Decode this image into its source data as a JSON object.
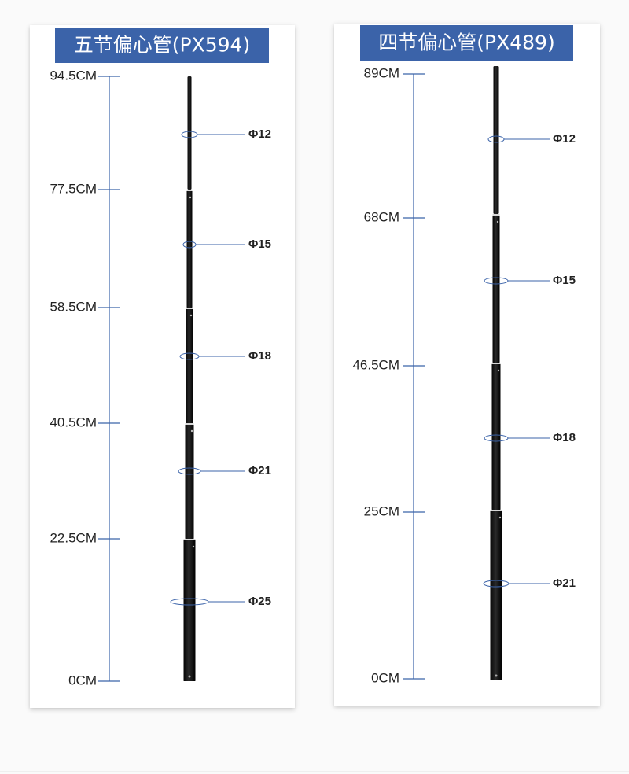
{
  "panels": [
    {
      "title": "五节偏心管(PX594)",
      "scale": [
        "94.5CM",
        "77.5CM",
        "58.5CM",
        "40.5CM",
        "22.5CM",
        "0CM"
      ],
      "diameters": [
        "Φ12",
        "Φ15",
        "Φ18",
        "Φ21",
        "Φ25"
      ]
    },
    {
      "title": "四节偏心管(PX489)",
      "scale": [
        "89CM",
        "68CM",
        "46.5CM",
        "25CM",
        "0CM"
      ],
      "diameters": [
        "Φ12",
        "Φ15",
        "Φ18",
        "Φ21"
      ]
    }
  ]
}
